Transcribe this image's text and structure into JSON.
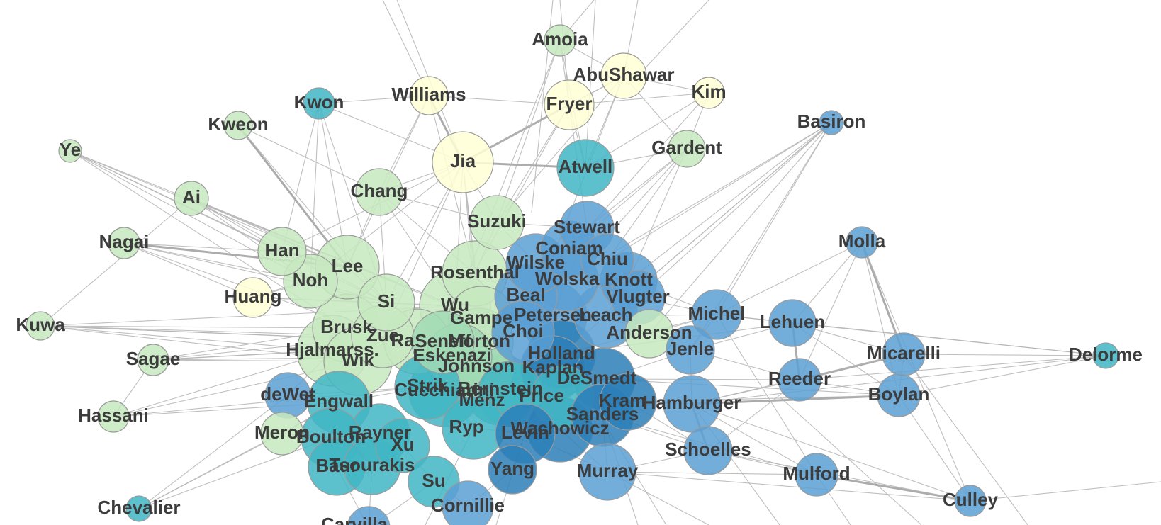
{
  "graph": {
    "colors": {
      "pale_yellow": "#ffffd6",
      "light_green": "#c7e9c0",
      "mint": "#a1dab4",
      "teal": "#41b6c4",
      "cyan": "#7fcdcf",
      "blue": "#2c7fb8",
      "mid_blue": "#5a9fd4",
      "edge": "#b4b4b4"
    },
    "nodes": [
      {
        "id": "amoia",
        "label": "Amoia",
        "color": "light_green"
      },
      {
        "id": "abushawar",
        "label": "AbuShawar",
        "color": "pale_yellow"
      },
      {
        "id": "kwon",
        "label": "Kwon",
        "color": "teal"
      },
      {
        "id": "williams",
        "label": "Williams",
        "color": "pale_yellow"
      },
      {
        "id": "kim",
        "label": "Kim",
        "color": "pale_yellow"
      },
      {
        "id": "fryer",
        "label": "Fryer",
        "color": "pale_yellow"
      },
      {
        "id": "kweon",
        "label": "Kweon",
        "color": "light_green"
      },
      {
        "id": "basiron",
        "label": "Basiron",
        "color": "mid_blue"
      },
      {
        "id": "ye",
        "label": "Ye",
        "color": "light_green"
      },
      {
        "id": "gardent",
        "label": "Gardent",
        "color": "light_green"
      },
      {
        "id": "jia",
        "label": "Jia",
        "color": "pale_yellow"
      },
      {
        "id": "atwell",
        "label": "Atwell",
        "color": "teal"
      },
      {
        "id": "ai",
        "label": "Ai",
        "color": "light_green"
      },
      {
        "id": "chang",
        "label": "Chang",
        "color": "light_green"
      },
      {
        "id": "suzuki",
        "label": "Suzuki",
        "color": "light_green"
      },
      {
        "id": "stewart",
        "label": "Stewart",
        "color": "mid_blue"
      },
      {
        "id": "nagai",
        "label": "Nagai",
        "color": "light_green"
      },
      {
        "id": "molla",
        "label": "Molla",
        "color": "mid_blue"
      },
      {
        "id": "han",
        "label": "Han",
        "color": "light_green"
      },
      {
        "id": "coniam",
        "label": "Coniam",
        "color": "mid_blue"
      },
      {
        "id": "chiu",
        "label": "Chiu",
        "color": "mid_blue"
      },
      {
        "id": "lee",
        "label": "Lee",
        "color": "light_green"
      },
      {
        "id": "wilske",
        "label": "Wilske",
        "color": "mid_blue"
      },
      {
        "id": "noh",
        "label": "Noh",
        "color": "light_green"
      },
      {
        "id": "rosenthal",
        "label": "Rosenthal",
        "color": "light_green"
      },
      {
        "id": "wolska",
        "label": "Wolska",
        "color": "mid_blue"
      },
      {
        "id": "knott",
        "label": "Knott",
        "color": "mid_blue"
      },
      {
        "id": "huang",
        "label": "Huang",
        "color": "pale_yellow"
      },
      {
        "id": "beal",
        "label": "Beal",
        "color": "mid_blue"
      },
      {
        "id": "vlugter",
        "label": "Vlugter",
        "color": "mid_blue"
      },
      {
        "id": "si",
        "label": "Si",
        "color": "light_green"
      },
      {
        "id": "wu",
        "label": "Wu",
        "color": "light_green"
      },
      {
        "id": "michel",
        "label": "Michel",
        "color": "mid_blue"
      },
      {
        "id": "lehuen",
        "label": "Lehuen",
        "color": "mid_blue"
      },
      {
        "id": "kuwa",
        "label": "Kuwa",
        "color": "light_green"
      },
      {
        "id": "gampe",
        "label": "Gampe",
        "color": "light_green"
      },
      {
        "id": "petersen",
        "label": "Petersen",
        "color": "mid_blue"
      },
      {
        "id": "leach",
        "label": "Leach",
        "color": "mid_blue"
      },
      {
        "id": "brusk",
        "label": "Brusk",
        "color": "light_green"
      },
      {
        "id": "choi",
        "label": "Choi",
        "color": "mid_blue"
      },
      {
        "id": "anderson",
        "label": "Anderson",
        "color": "light_green"
      },
      {
        "id": "zue",
        "label": "Zue",
        "color": "light_green"
      },
      {
        "id": "ramo",
        "label": "Ra",
        "color": "light_green"
      },
      {
        "id": "seneff",
        "label": "Seneff",
        "color": "mint"
      },
      {
        "id": "morton",
        "label": "Morton",
        "color": "mint"
      },
      {
        "id": "jenle",
        "label": "Jenle",
        "color": "mid_blue"
      },
      {
        "id": "hjalmarss",
        "label": "Hjalmarss.",
        "color": "light_green"
      },
      {
        "id": "holland",
        "label": "Holland",
        "color": "blue"
      },
      {
        "id": "micarelli",
        "label": "Micarelli",
        "color": "mid_blue"
      },
      {
        "id": "delorme",
        "label": "Delorme",
        "color": "teal"
      },
      {
        "id": "sagae",
        "label": "Sagae",
        "color": "light_green"
      },
      {
        "id": "wik",
        "label": "Wik",
        "color": "light_green"
      },
      {
        "id": "eskenazi",
        "label": "Eskenazi",
        "color": "mint"
      },
      {
        "id": "johnson",
        "label": "Johnson",
        "color": "mint"
      },
      {
        "id": "kaplan",
        "label": "Kaplan",
        "color": "blue"
      },
      {
        "id": "desmedt",
        "label": "DeSmedt",
        "color": "blue"
      },
      {
        "id": "reeder",
        "label": "Reeder",
        "color": "mid_blue"
      },
      {
        "id": "boylan",
        "label": "Boylan",
        "color": "mid_blue"
      },
      {
        "id": "dewet",
        "label": "deWet",
        "color": "mid_blue"
      },
      {
        "id": "strik",
        "label": "Strik",
        "color": "teal"
      },
      {
        "id": "bernstein",
        "label": "Bernstein",
        "color": "teal"
      },
      {
        "id": "engwall",
        "label": "Engwall",
        "color": "teal"
      },
      {
        "id": "cucchiarini",
        "label": "Cucchiarini",
        "color": "teal"
      },
      {
        "id": "meng",
        "label": "Menz",
        "color": "teal"
      },
      {
        "id": "price",
        "label": "Price",
        "color": "teal"
      },
      {
        "id": "kramer",
        "label": "Kram",
        "color": "blue"
      },
      {
        "id": "hamburger",
        "label": "Hamburger",
        "color": "mid_blue"
      },
      {
        "id": "hassani",
        "label": "Hassani",
        "color": "light_green"
      },
      {
        "id": "sanders",
        "label": "Sanders",
        "color": "blue"
      },
      {
        "id": "meron",
        "label": "Meron",
        "color": "light_green"
      },
      {
        "id": "rayner",
        "label": "Rayner",
        "color": "teal"
      },
      {
        "id": "boulton",
        "label": "Boulton",
        "color": "teal"
      },
      {
        "id": "rypa",
        "label": "Ryp",
        "color": "teal"
      },
      {
        "id": "wachowicz",
        "label": "Wachowicz",
        "color": "blue"
      },
      {
        "id": "levin",
        "label": "Levin",
        "color": "blue"
      },
      {
        "id": "xu",
        "label": "Xu",
        "color": "teal"
      },
      {
        "id": "schoelles",
        "label": "Schoelles",
        "color": "mid_blue"
      },
      {
        "id": "baur",
        "label": "Baur",
        "color": "teal"
      },
      {
        "id": "tsourakis",
        "label": "Tsourakis",
        "color": "teal"
      },
      {
        "id": "yang",
        "label": "Yang",
        "color": "blue"
      },
      {
        "id": "murray",
        "label": "Murray",
        "color": "mid_blue"
      },
      {
        "id": "mulford",
        "label": "Mulford",
        "color": "mid_blue"
      },
      {
        "id": "su",
        "label": "Su",
        "color": "teal"
      },
      {
        "id": "cornillie",
        "label": "Cornillie",
        "color": "mid_blue"
      },
      {
        "id": "chevalier",
        "label": "Chevalier",
        "color": "teal"
      },
      {
        "id": "culley",
        "label": "Culley",
        "color": "mid_blue"
      },
      {
        "id": "carvilla",
        "label": "Carvilla",
        "color": "mid_blue"
      }
    ]
  }
}
